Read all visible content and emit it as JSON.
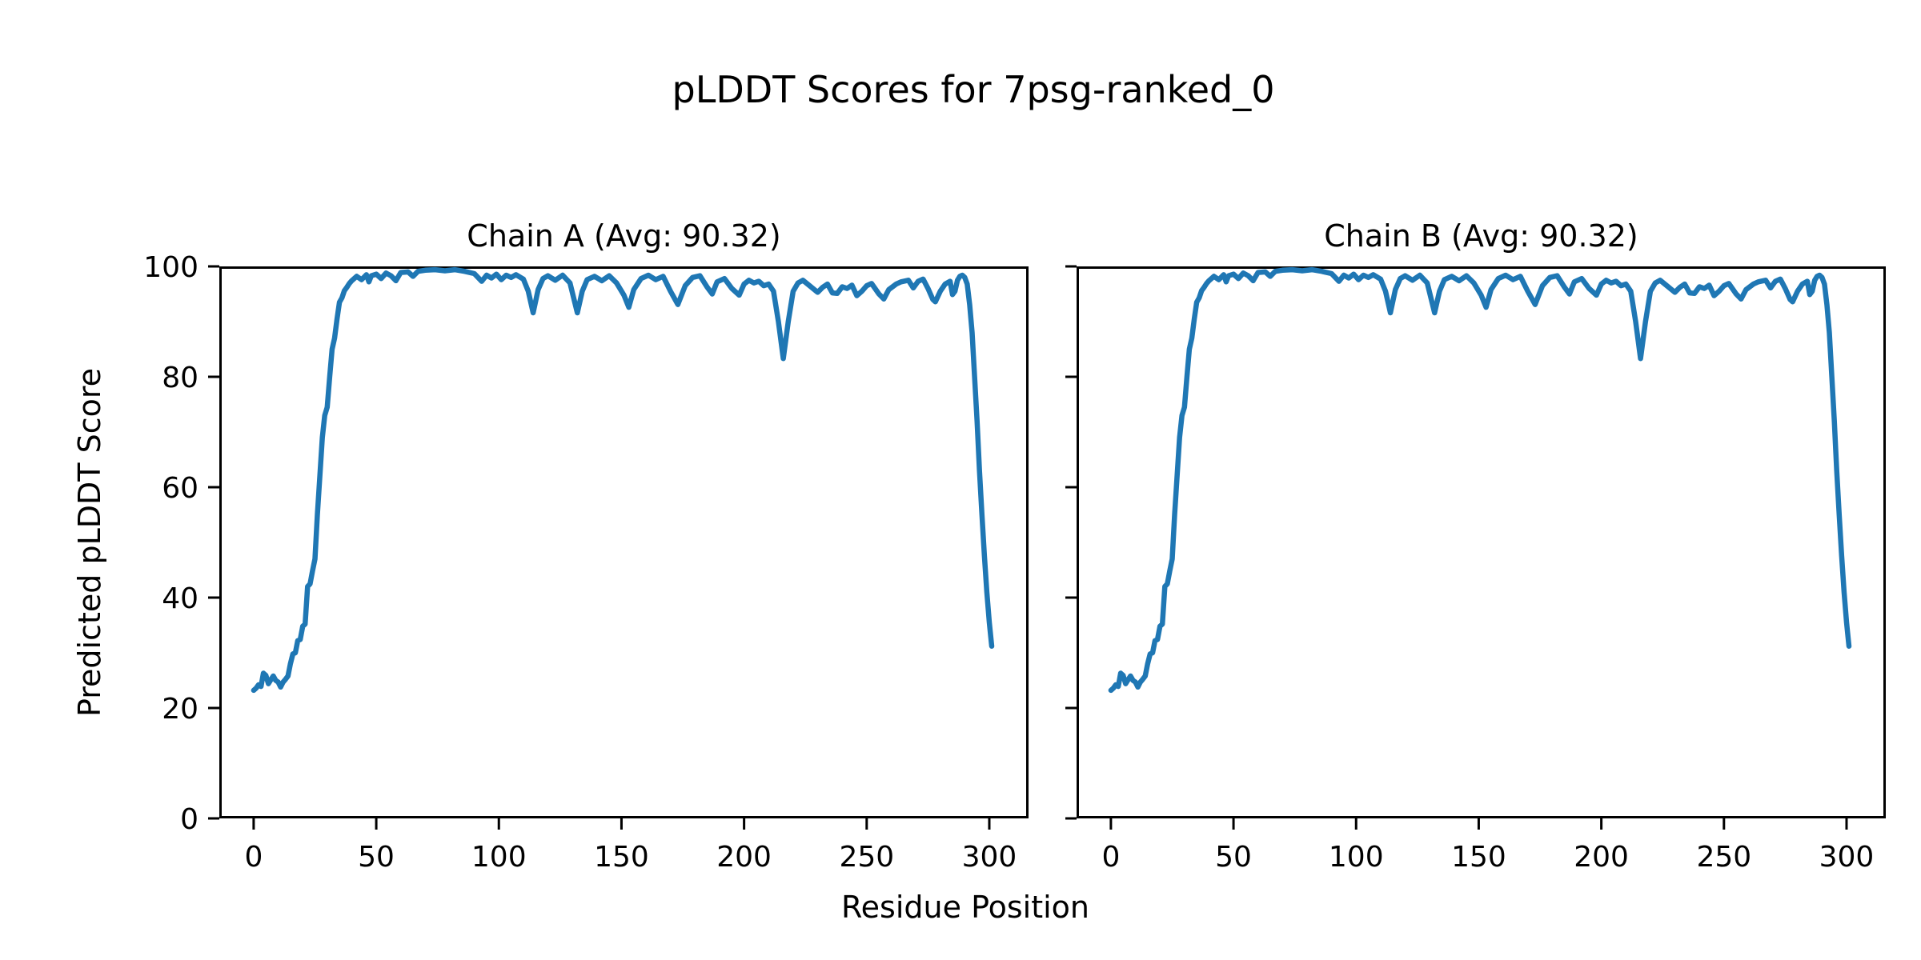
{
  "figure": {
    "suptitle": "pLDDT Scores for 7psg-ranked_0",
    "xlabel": "Residue Position",
    "ylabel": "Predicted pLDDT Score"
  },
  "chart_data": {
    "type": "line",
    "title": "pLDDT Scores for 7psg-ranked_0",
    "xlabel": "Residue Position",
    "ylabel": "Predicted pLDDT Score",
    "line_color": "#1f77b4",
    "spine_color": "#000000",
    "grid": false,
    "legend": "none",
    "xlim": [
      -14,
      316
    ],
    "ylim": [
      0,
      100
    ],
    "xticks": [
      0,
      50,
      100,
      150,
      200,
      250,
      300
    ],
    "yticks": [
      0,
      20,
      40,
      60,
      80,
      100
    ],
    "subplots": [
      {
        "title": "Chain A (Avg: 90.32)",
        "chain": "A",
        "avg": 90.32,
        "show_ytick_labels": true
      },
      {
        "title": "Chain B (Avg: 90.32)",
        "chain": "B",
        "avg": 90.32,
        "show_ytick_labels": false
      }
    ],
    "note": "Both subplots plot the identical pLDDT series below (x = residue position, y = pLDDT).",
    "series_keypoints": [
      [
        0,
        23.2
      ],
      [
        1,
        23.6
      ],
      [
        2,
        24.2
      ],
      [
        3,
        23.9
      ],
      [
        4,
        26.3
      ],
      [
        5,
        25.9
      ],
      [
        6,
        24.4
      ],
      [
        7,
        25.1
      ],
      [
        8,
        25.8
      ],
      [
        9,
        25.0
      ],
      [
        10,
        24.7
      ],
      [
        11,
        23.8
      ],
      [
        12,
        24.7
      ],
      [
        13,
        25.2
      ],
      [
        14,
        25.8
      ],
      [
        15,
        28.0
      ],
      [
        16,
        29.8
      ],
      [
        17,
        30.0
      ],
      [
        18,
        32.2
      ],
      [
        19,
        32.4
      ],
      [
        20,
        34.8
      ],
      [
        21,
        35.2
      ],
      [
        22,
        42.0
      ],
      [
        23,
        42.5
      ],
      [
        24,
        44.8
      ],
      [
        25,
        47.0
      ],
      [
        26,
        55.0
      ],
      [
        27,
        62.0
      ],
      [
        28,
        69.0
      ],
      [
        29,
        73.0
      ],
      [
        30,
        74.5
      ],
      [
        31,
        80.0
      ],
      [
        32,
        85.0
      ],
      [
        33,
        87.0
      ],
      [
        34,
        90.5
      ],
      [
        35,
        93.5
      ],
      [
        36,
        94.3
      ],
      [
        37,
        95.6
      ],
      [
        38,
        96.2
      ],
      [
        39,
        96.9
      ],
      [
        40,
        97.4
      ],
      [
        42,
        98.2
      ],
      [
        44,
        97.6
      ],
      [
        46,
        98.5
      ],
      [
        47,
        97.2
      ],
      [
        48,
        98.3
      ],
      [
        50,
        98.6
      ],
      [
        52,
        97.8
      ],
      [
        54,
        98.8
      ],
      [
        56,
        98.3
      ],
      [
        58,
        97.4
      ],
      [
        60,
        98.9
      ],
      [
        63,
        99.0
      ],
      [
        65,
        98.2
      ],
      [
        67,
        99.1
      ],
      [
        70,
        99.3
      ],
      [
        74,
        99.4
      ],
      [
        78,
        99.2
      ],
      [
        82,
        99.4
      ],
      [
        86,
        99.1
      ],
      [
        90,
        98.7
      ],
      [
        93,
        97.3
      ],
      [
        95,
        98.4
      ],
      [
        97,
        97.9
      ],
      [
        99,
        98.6
      ],
      [
        101,
        97.6
      ],
      [
        103,
        98.4
      ],
      [
        105,
        98.0
      ],
      [
        107,
        98.5
      ],
      [
        110,
        97.7
      ],
      [
        112,
        95.5
      ],
      [
        114,
        91.6
      ],
      [
        116,
        95.8
      ],
      [
        118,
        97.8
      ],
      [
        120,
        98.3
      ],
      [
        123,
        97.5
      ],
      [
        126,
        98.4
      ],
      [
        129,
        97.0
      ],
      [
        132,
        91.6
      ],
      [
        134,
        95.5
      ],
      [
        136,
        97.6
      ],
      [
        139,
        98.2
      ],
      [
        142,
        97.4
      ],
      [
        145,
        98.3
      ],
      [
        148,
        97.0
      ],
      [
        151,
        94.8
      ],
      [
        153,
        92.6
      ],
      [
        155,
        95.8
      ],
      [
        158,
        97.8
      ],
      [
        161,
        98.4
      ],
      [
        164,
        97.6
      ],
      [
        167,
        98.2
      ],
      [
        170,
        95.5
      ],
      [
        173,
        93.1
      ],
      [
        176,
        96.5
      ],
      [
        179,
        98.0
      ],
      [
        182,
        98.3
      ],
      [
        185,
        96.2
      ],
      [
        187,
        95.0
      ],
      [
        189,
        97.2
      ],
      [
        192,
        97.8
      ],
      [
        195,
        96.0
      ],
      [
        198,
        94.8
      ],
      [
        200,
        96.8
      ],
      [
        202,
        97.5
      ],
      [
        204,
        97.0
      ],
      [
        206,
        97.3
      ],
      [
        208,
        96.5
      ],
      [
        210,
        96.8
      ],
      [
        212,
        95.5
      ],
      [
        214,
        90.0
      ],
      [
        216,
        83.3
      ],
      [
        218,
        90.0
      ],
      [
        220,
        95.5
      ],
      [
        222,
        97.0
      ],
      [
        224,
        97.5
      ],
      [
        227,
        96.4
      ],
      [
        230,
        95.3
      ],
      [
        232,
        96.2
      ],
      [
        234,
        96.8
      ],
      [
        236,
        95.2
      ],
      [
        238,
        95.1
      ],
      [
        240,
        96.3
      ],
      [
        242,
        96.0
      ],
      [
        244,
        96.6
      ],
      [
        246,
        94.7
      ],
      [
        248,
        95.5
      ],
      [
        250,
        96.5
      ],
      [
        252,
        96.9
      ],
      [
        255,
        95.0
      ],
      [
        257,
        94.1
      ],
      [
        259,
        95.8
      ],
      [
        262,
        96.8
      ],
      [
        264,
        97.2
      ],
      [
        267,
        97.5
      ],
      [
        269,
        96.1
      ],
      [
        271,
        97.3
      ],
      [
        273,
        97.7
      ],
      [
        275,
        96.0
      ],
      [
        277,
        94.0
      ],
      [
        278,
        93.6
      ],
      [
        280,
        95.5
      ],
      [
        282,
        96.8
      ],
      [
        284,
        97.3
      ],
      [
        285,
        94.9
      ],
      [
        286,
        95.5
      ],
      [
        287,
        97.5
      ],
      [
        288,
        98.2
      ],
      [
        289,
        98.4
      ],
      [
        290,
        98.0
      ],
      [
        291,
        96.8
      ],
      [
        292,
        93.0
      ],
      [
        293,
        88.0
      ],
      [
        294,
        80.0
      ],
      [
        295,
        72.0
      ],
      [
        296,
        63.0
      ],
      [
        297,
        55.0
      ],
      [
        298,
        47.5
      ],
      [
        299,
        41.0
      ],
      [
        300,
        35.5
      ],
      [
        301,
        31.2
      ]
    ]
  }
}
